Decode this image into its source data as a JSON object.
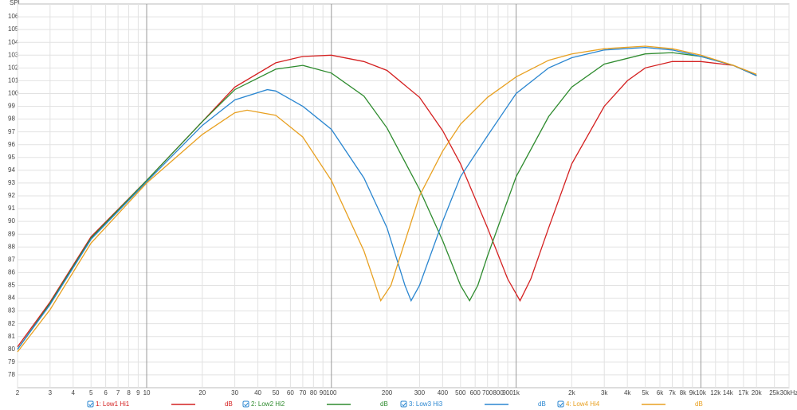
{
  "chart_data": {
    "type": "line",
    "y_label": "SPL",
    "log_x": true,
    "grid": true,
    "xlim": [
      2,
      30000
    ],
    "ylim": [
      77,
      107
    ],
    "xticks": [
      2,
      3,
      4,
      5,
      6,
      7,
      8,
      9,
      10,
      20,
      30,
      40,
      50,
      60,
      70,
      80,
      90,
      100,
      200,
      300,
      400,
      500,
      600,
      700,
      800,
      900,
      {
        "value": 1000,
        "label": "1k"
      },
      {
        "value": 2000,
        "label": "2k"
      },
      {
        "value": 3000,
        "label": "3k"
      },
      {
        "value": 4000,
        "label": "4k"
      },
      {
        "value": 5000,
        "label": "5k"
      },
      {
        "value": 6000,
        "label": "6k"
      },
      {
        "value": 7000,
        "label": "7k"
      },
      {
        "value": 8000,
        "label": "8k"
      },
      {
        "value": 9000,
        "label": "9k"
      },
      {
        "value": 10000,
        "label": "10k"
      },
      {
        "value": 12000,
        "label": "12k"
      },
      {
        "value": 14000,
        "label": "14k"
      },
      {
        "value": 17000,
        "label": "17k"
      },
      {
        "value": 20000,
        "label": "20k"
      },
      {
        "value": 25000,
        "label": "25k"
      },
      {
        "value": 30000,
        "label": "30kHz"
      }
    ],
    "yticks": [
      78,
      79,
      80,
      81,
      82,
      83,
      84,
      85,
      86,
      87,
      88,
      89,
      90,
      91,
      92,
      93,
      94,
      95,
      96,
      97,
      98,
      99,
      100,
      101,
      102,
      103,
      104,
      105,
      106
    ],
    "series": [
      {
        "name": "1: Low1 Hi1",
        "unit": "dB",
        "color": "#d42020",
        "x": [
          2,
          3,
          5,
          10,
          20,
          30,
          50,
          70,
          100,
          150,
          200,
          300,
          400,
          500,
          700,
          900,
          1050,
          1200,
          1500,
          2000,
          3000,
          4000,
          5000,
          7000,
          10000,
          15000,
          20000
        ],
        "values": [
          80.2,
          83.7,
          88.8,
          93.2,
          97.8,
          100.5,
          102.4,
          102.9,
          103.0,
          102.5,
          101.8,
          99.7,
          97.1,
          94.5,
          89.5,
          85.5,
          83.8,
          85.5,
          89.5,
          94.5,
          99,
          101,
          102,
          102.5,
          102.5,
          102.2,
          101.4
        ]
      },
      {
        "name": "2: Low2 Hi2",
        "unit": "dB",
        "color": "#2e8b2e",
        "x": [
          2,
          3,
          5,
          10,
          20,
          30,
          50,
          70,
          100,
          150,
          200,
          300,
          400,
          500,
          560,
          620,
          700,
          1000,
          1500,
          2000,
          3000,
          5000,
          7000,
          10000,
          15000,
          20000
        ],
        "values": [
          80,
          83.6,
          88.7,
          93.2,
          97.8,
          100.3,
          101.9,
          102.2,
          101.6,
          99.8,
          97.3,
          92.5,
          88.5,
          85,
          83.8,
          85,
          87.3,
          93.5,
          98.2,
          100.5,
          102.3,
          103.1,
          103.2,
          102.9,
          102.2,
          101.4
        ]
      },
      {
        "name": "3: Low3 Hi3",
        "unit": "dB",
        "color": "#2a86d0",
        "x": [
          2,
          3,
          5,
          10,
          20,
          30,
          45,
          50,
          70,
          100,
          150,
          200,
          250,
          270,
          300,
          400,
          500,
          700,
          1000,
          1500,
          2000,
          3000,
          5000,
          7000,
          10000,
          15000,
          20000
        ],
        "values": [
          80,
          83.5,
          88.6,
          93.1,
          97.5,
          99.5,
          100.3,
          100.2,
          99,
          97.2,
          93.4,
          89.5,
          85,
          83.8,
          85,
          90,
          93.5,
          96.7,
          100,
          102,
          102.8,
          103.4,
          103.6,
          103.4,
          102.9,
          102.2,
          101.4
        ]
      },
      {
        "name": "4: Low4 Hi4",
        "unit": "dB",
        "color": "#e8a020",
        "x": [
          2,
          3,
          5,
          10,
          20,
          30,
          35,
          50,
          70,
          100,
          150,
          185,
          210,
          300,
          400,
          500,
          700,
          1000,
          1500,
          2000,
          3000,
          5000,
          7000,
          10000,
          15000,
          20000
        ],
        "values": [
          79.8,
          83.1,
          88.3,
          93,
          96.8,
          98.5,
          98.7,
          98.3,
          96.6,
          93.2,
          87.7,
          83.8,
          85,
          92,
          95.5,
          97.6,
          99.7,
          101.3,
          102.6,
          103.1,
          103.5,
          103.7,
          103.5,
          103,
          102.2,
          101.5
        ]
      }
    ]
  }
}
